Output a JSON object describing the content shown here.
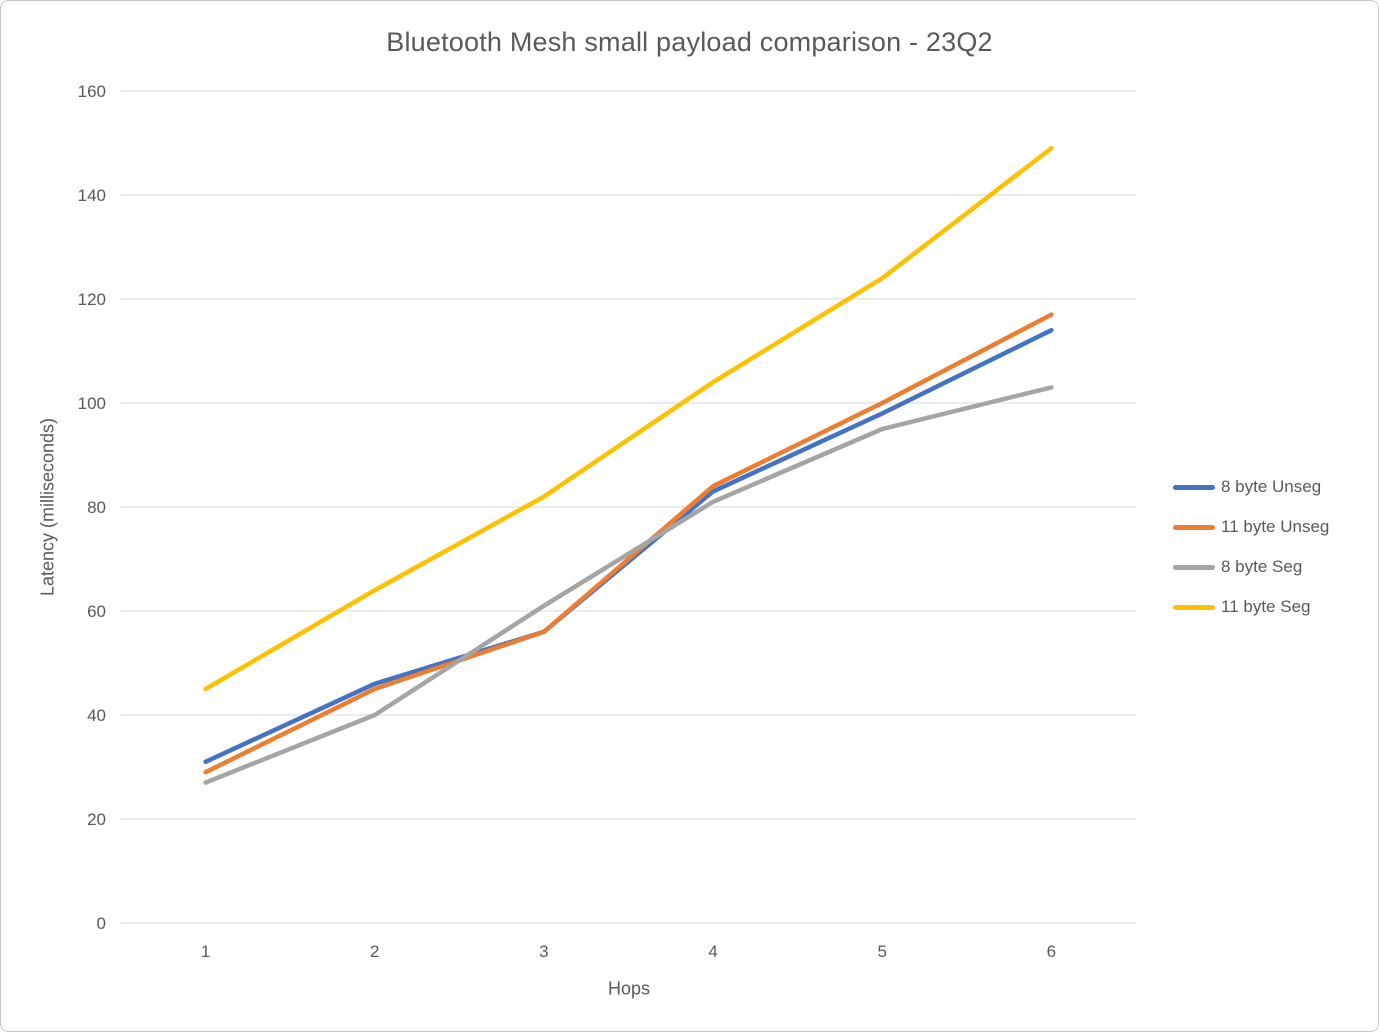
{
  "window": {
    "background": "#ffffff",
    "border_color": "#c9c9c9"
  },
  "chart_data": {
    "type": "line",
    "title": "Bluetooth Mesh small payload comparison - 23Q2",
    "xlabel": "Hops",
    "ylabel": "Latency (milliseconds)",
    "x": [
      1,
      2,
      3,
      4,
      5,
      6
    ],
    "series": [
      {
        "name": "8 byte Unseg",
        "color": "#4472C4",
        "values": [
          31,
          46,
          56,
          83,
          98,
          114
        ]
      },
      {
        "name": "11 byte Unseg",
        "color": "#ED7D31",
        "values": [
          29,
          45,
          56,
          84,
          100,
          117
        ]
      },
      {
        "name": "8 byte Seg",
        "color": "#A5A5A5",
        "values": [
          27,
          40,
          61,
          81,
          95,
          103
        ]
      },
      {
        "name": "11 byte Seg",
        "color": "#FFC000",
        "values": [
          45,
          64,
          82,
          104,
          124,
          149
        ]
      }
    ],
    "ylim": [
      0,
      160
    ],
    "yticks": [
      0,
      20,
      40,
      60,
      80,
      100,
      120,
      140,
      160
    ],
    "grid": true,
    "gridline_color": "#D9D9D9",
    "text_color": "#595959",
    "legend_position": "right"
  }
}
